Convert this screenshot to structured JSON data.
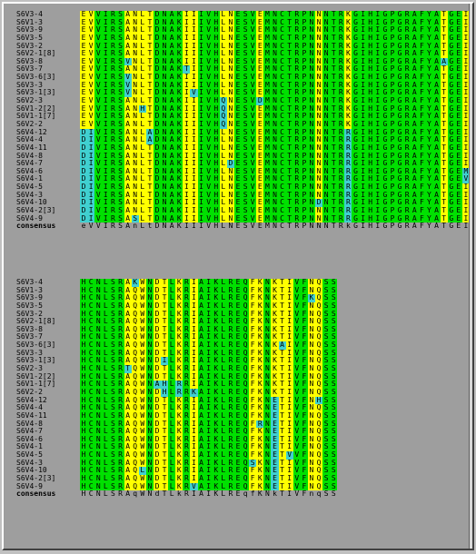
{
  "colors": {
    "identical": "#00e000",
    "conserved": "#ffff00",
    "variant": "#40d0d0",
    "background": "#9e9e9e"
  },
  "block1": {
    "rows": [
      {
        "name": "S6V3-4",
        "seq": "EVVIRSANLTDNAKIIIVHLNESVEMNCTRPNNNTRKGIHIGPGRAFYATGEIIGDIRQA"
      },
      {
        "name": "S6V1-3",
        "seq": "EVVIRSANLTDNAKIIIVHLNESVEMNCTRPNNNTRKGIHIGPGRAFYATGEIIGDIRQA"
      },
      {
        "name": "S6V3-9",
        "seq": "EVVIRSANLTDNAKIIIVHLNESVEMNCTRPNNNTRKGIHIGPGRAFYATGEIIGDIRQA"
      },
      {
        "name": "S6V3-5",
        "seq": "EVVIRSANLTDNAKIIIVHLNESVEMNCTRPNNNTRKGIHIGPGRAFYATGEIIGDIRQA"
      },
      {
        "name": "S6V3-2",
        "seq": "EVVIRSANLTDNAKIIIVHLNESVEMNCTRPNNNTRKGIHIGPGRAFYATGEIIGDIRQA"
      },
      {
        "name": "S6V2-1[8]",
        "seq": "EVVIRSANLTDNAKIIIVHLNESVEMNCTRPNNNTRKGIHIGPGRAFYATGEIIGDIRQA"
      },
      {
        "name": "S6V3-8",
        "seq": "EVVIRSVNLTDNAKIIIVHLNESVEMNCTRPNNNTRKGIHIGPGRAFYAAGEIIGDIRQA"
      },
      {
        "name": "S6V3-7",
        "seq": "EVVIRSANLTDNAKTIIVHLNESVEMNCTRPNNNTRKGIHIGPGRAFYATGEIIGDIRKA"
      },
      {
        "name": "S6V3-6[3]",
        "seq": "EVVIRSVNLTDNAKIIIVHLNESVEMNCTRPNNNTRKGIHIGPGRAFYATGEIIGDIRQA"
      },
      {
        "name": "S6V3-3",
        "seq": "EVVIRSVNLTDNAKIIIVHLNESVEMNCTRPNNNTRKGIHIGPGRAFYATGEIIGDIRQA"
      },
      {
        "name": "S6V3-1[3]",
        "seq": "EVVIRSVNLTDNAKIVIVHLNESVEMNCTRPNNNTRKGIHIGPGRAFYATGEIIGDIRQA"
      },
      {
        "name": "S6V2-3",
        "seq": "EVVIRSANLTDNAKIIIVHQNESVDMNCTRPNNNTRKGIHIGPGRAFYATGEIIGDIRQA"
      },
      {
        "name": "S6V1-2[2]",
        "seq": "EVVIRSANHTDNAKIIIVHQNESVEMNCTRPNNNTRKGIHIGPGRAFYATGEIIGDIRQA"
      },
      {
        "name": "S6V1-1[7]",
        "seq": "EVVIRSANLTDNAKIIIVHQNESVEMNCTRPNNNTRKGIHIGPGRAFYATGEIIGDIRQA"
      },
      {
        "name": "S6V2-2",
        "seq": "EVVIRSANLTDNAKIIIVHQNESVEMNCTRPNNNTRKGIHIGPGRAFYATGEIIGDIRQA"
      },
      {
        "name": "S6V4-12",
        "seq": "DIVIRSANLADNAKIIIVHLNESVEMNCTRPNNNTRRGIHIGPGRAFYATGEIIGNIRQA"
      },
      {
        "name": "S6V4-4",
        "seq": "DIVIRSANLADNAKIIIVHLNESVEMNCTRPNNNTRRGIHIGPGRAFYATGEIIGNIRQA"
      },
      {
        "name": "S6V4-11",
        "seq": "DIVIRSANLTDNAKIIIVHLNESVEMNCTRPNNNTRRGIHIGPGRAFYATGEIIGNIRQA"
      },
      {
        "name": "S6V4-8",
        "seq": "DIVIRSANLTDNAKIIIVHLNESVEMNCTRPNNNTRRGIHIGPGRAFYATGEIIGNIRQA"
      },
      {
        "name": "S6V4-7",
        "seq": "DIVIRSANLTDNAKIIIVHLDESVEMNCTRPNNNTRRGIHIGPGRAFYATGEIIGNIRQA"
      },
      {
        "name": "S6V4-6",
        "seq": "DIVIRSANLTDNAKIIIVHLNESVEMNCTRPNNNTRRGIHIGPGRAFYATGEMIGNIRQA"
      },
      {
        "name": "S6V4-1",
        "seq": "DIVIRSANLTDNAKIIIVHLNESVEMNCTRPNNNTRRGIHIGPGRAFYATGEVIGNIRQA"
      },
      {
        "name": "S6V4-5",
        "seq": "DIVIRSANLTDNAKIIIVHLNESVEMNCTRPNNNTRRGIHIGPGRAFYATGEIIGNIRQA"
      },
      {
        "name": "S6V4-3",
        "seq": "DIVIRSANLTDNAKIIIVHLNESVEMNCTRPNNNTRRGIHIGPGRAFYATGEIIGNIRQA"
      },
      {
        "name": "S6V4-10",
        "seq": "DIVIRSANLTDNAKIIIVHLNESVEMNCTRPNDNTRRGIHIGPGRAFYATGEIIGNIRQA"
      },
      {
        "name": "S6V4-2[3]",
        "seq": "DIVIRSANLTDNAKIIIVHLNESVEMNCTRPNNNTRRGIHIGPGRAFYATGEIIGNIRQA"
      },
      {
        "name": "S6V4-9",
        "seq": "DIVIRSASLTDNAKIIIVHLNESVEMNCTRPNNNTRRGIHIGPGRAFYATGEIIGNIRQA"
      }
    ],
    "consensus": {
      "name": "consensus",
      "seq": "eVVIRSAnLtDNAKIIIVHLNESVEMNCTRPNNNTRkGIHIGPGRAFYATGEIIGdIRqA"
    }
  },
  "block2": {
    "rows": [
      {
        "name": "S6V3-4",
        "seq": "HCNLSRAKWNDTLKRIAIKLREQFKNKTIVFNQSS"
      },
      {
        "name": "S6V1-3",
        "seq": "HCNLSRAQWNDTLKRIAIKLREQFKNKTIVFNQSS"
      },
      {
        "name": "S6V3-9",
        "seq": "HCNLSRAQWNDTLKRIAIKLREQFKNKTIVFKQSS"
      },
      {
        "name": "S6V3-5",
        "seq": "HCNLSRAQWNDTLKRIAIKLREQFKNKTIVFNQSS"
      },
      {
        "name": "S6V3-2",
        "seq": "HCNLSRAQWNDTLKRIAIKLREQFKNKTIVFNQSS"
      },
      {
        "name": "S6V2-1[8]",
        "seq": "HCNLSRAQWNDTLKRIAIKLREQFKNKTIVFNQSS"
      },
      {
        "name": "S6V3-8",
        "seq": "HCNLSRAQWNDTLKRIAIKLREQFKNKTIVFNQSS"
      },
      {
        "name": "S6V3-7",
        "seq": "HCNLSRAQWNDTLKRIAIKLREQFKNKTIVFNQSS"
      },
      {
        "name": "S6V3-6[3]",
        "seq": "HCNLSRAQWNDTLKRIAIKLREQFKNKAIVFNQSS"
      },
      {
        "name": "S6V3-3",
        "seq": "HCNLSRAQWNDTLKRIAIKLREQFKNKTIVFNQSS"
      },
      {
        "name": "S6V3-1[3]",
        "seq": "HCNLSRAQWNDILKRIAIKLREQFKNKTIVFNQSS"
      },
      {
        "name": "S6V2-3",
        "seq": "HCNLSRTQWNDTLKRIAIKLREQFKNKTIVFNQSS"
      },
      {
        "name": "S6V1-2[2]",
        "seq": "HCNLSRAQWNDTLKRIAIKLREQFKNKTIVFNQSS"
      },
      {
        "name": "S6V1-1[7]",
        "seq": "HCNLSRAQWNAHLRRIAIKLREQFKNKTIVFNQSS"
      },
      {
        "name": "S6V2-2",
        "seq": "HCNLSRAQWNDHLRRKAIKLREQFKNKTIVFNQSS"
      },
      {
        "name": "S6V4-12",
        "seq": "HCNLSRAQWNDTLKRIAIKLREQFKNETIVFNHSS"
      },
      {
        "name": "S6V4-4",
        "seq": "HCNLSRAQWNDTLKRIAIKLREQFKNETIVFNQSS"
      },
      {
        "name": "S6V4-11",
        "seq": "HCNLSRAQWNDTLKRIAIKLREQFKNETIVFNQSS"
      },
      {
        "name": "S6V4-8",
        "seq": "HCNLSRAQWNDTLKRIAIKLREQFRNETIVFNQSS"
      },
      {
        "name": "S6V4-7",
        "seq": "HCNLSRAQWNDTLKRIAIKLREQFKNETIVFNQSS"
      },
      {
        "name": "S6V4-6",
        "seq": "HCNLSRAQWNDTLKRIAIKLREQFKNETIVFNQSS"
      },
      {
        "name": "S6V4-1",
        "seq": "HCNLSRAQWNDTLKRIAIKLREQFKNETIVFNQSS"
      },
      {
        "name": "S6V4-5",
        "seq": "HCNLSRAQWNDTLKRIAIKLREQFKNETVVFNQSS"
      },
      {
        "name": "S6V4-3",
        "seq": "HCNLSRAQWNDTLKRIAIKLREQSKNETIVFNQSS"
      },
      {
        "name": "S6V4-10",
        "seq": "HCNLSRAQLNDTLKRIAIKLREQFKNETIVFNQSS"
      },
      {
        "name": "S6V4-2[3]",
        "seq": "HCNLSRAQWNDTLKRIAIKLREQFKNETIVFNQSS"
      },
      {
        "name": "S6V4-9",
        "seq": "HCNLSRAQWNDTLKRVAIKLREQFKNETIVFNQSS"
      }
    ],
    "consensus": {
      "name": "consensus",
      "seq": "HCNLSRAqWNdTLkRIAIKLREqfKNkTIVFnqSS"
    }
  }
}
